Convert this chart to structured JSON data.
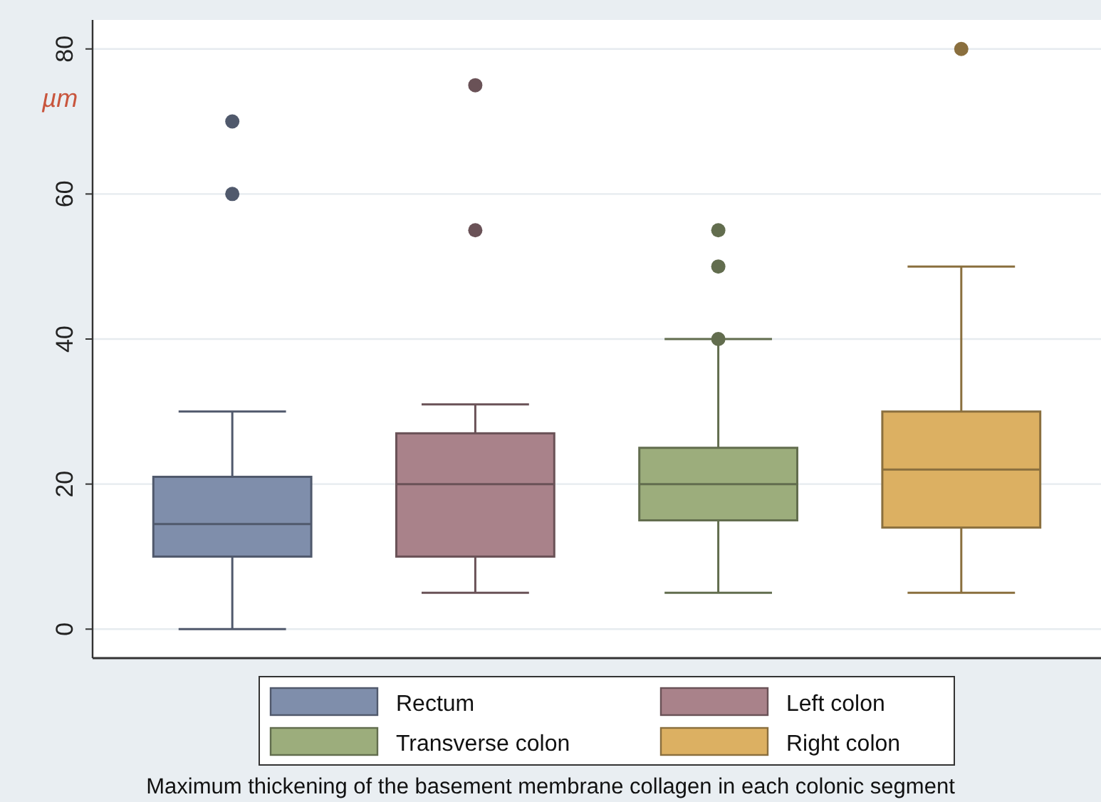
{
  "chart_data": {
    "type": "box",
    "annotations": [
      "Maximum thickening of the basement membrane collagen in each colonic segment"
    ],
    "ylabel": "µm",
    "categories": [
      null,
      null,
      null,
      null
    ],
    "series": [
      {
        "name": "Rectum",
        "color": "#7f8eab",
        "boxes": [
          {
            "low": 0,
            "q1": 10,
            "median": 14.5,
            "q3": 21,
            "high": 30,
            "outliers": [
              60,
              70
            ]
          },
          null,
          null,
          null
        ]
      },
      {
        "name": "Left colon",
        "color": "#a9828a",
        "boxes": [
          null,
          {
            "low": 5,
            "q1": 10,
            "median": 20,
            "q3": 27,
            "high": 31,
            "outliers": [
              55,
              75
            ]
          },
          null,
          null
        ]
      },
      {
        "name": "Transverse colon",
        "color": "#9cad7c",
        "boxes": [
          null,
          null,
          {
            "low": 5,
            "q1": 15,
            "median": 20,
            "q3": 25,
            "high": 40,
            "outliers": [
              40,
              50,
              55
            ]
          },
          null
        ]
      },
      {
        "name": "Right colon",
        "color": "#dcb062",
        "boxes": [
          null,
          null,
          null,
          {
            "low": 5,
            "q1": 14,
            "median": 22,
            "q3": 30,
            "high": 50,
            "outliers": [
              80
            ]
          }
        ]
      }
    ],
    "ylim": [
      -4,
      84
    ],
    "yticks": [
      0,
      20,
      40,
      60,
      80
    ],
    "grid": "y",
    "legend": "bottom"
  }
}
